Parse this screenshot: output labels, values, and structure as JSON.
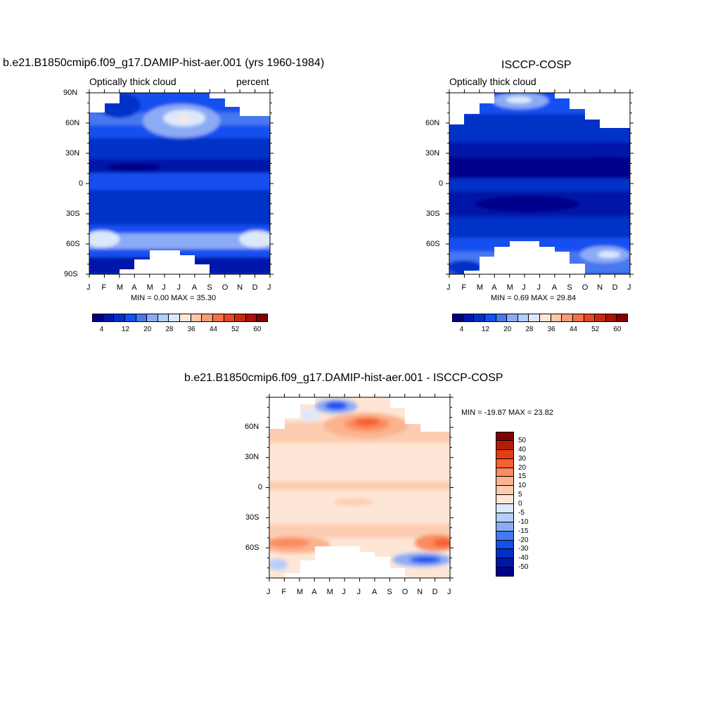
{
  "panels": [
    {
      "title": "b.e21.B1850cmip6.f09_g17.DAMIP-hist-aer.001 (yrs 1960-1984)",
      "left_label": "Optically thick cloud",
      "right_label": "percent",
      "min_max": "MIN =   0.00 MAX =  35.30",
      "y_ticks": [
        "90N",
        "60N",
        "30N",
        "0",
        "30S",
        "60S",
        "90S"
      ]
    },
    {
      "title": "ISCCP-COSP",
      "left_label": "Optically thick cloud",
      "right_label": "",
      "min_max": "MIN =   0.69 MAX =  29.84",
      "y_ticks": [
        "60N",
        "30N",
        "0",
        "30S",
        "60S"
      ]
    },
    {
      "title": "b.e21.B1850cmip6.f09_g17.DAMIP-hist-aer.001 - ISCCP-COSP",
      "left_label": "",
      "right_label": "",
      "min_max": "MIN = -19.87 MAX =  23.82",
      "y_ticks": [
        "60N",
        "30N",
        "0",
        "30S",
        "60S"
      ]
    }
  ],
  "months": [
    "J",
    "F",
    "M",
    "A",
    "M",
    "J",
    "J",
    "A",
    "S",
    "O",
    "N",
    "D",
    "J"
  ],
  "colorbar_abs": {
    "labels": [
      "4",
      "12",
      "20",
      "28",
      "36",
      "44",
      "52",
      "60"
    ],
    "colors": [
      "#00008a",
      "#0018a8",
      "#0030c8",
      "#1450f0",
      "#4678f0",
      "#8cabf5",
      "#b4cdfa",
      "#dce8fc",
      "#fde7d8",
      "#fcc6a9",
      "#f99c76",
      "#f47048",
      "#ea4420",
      "#c82810",
      "#a61408",
      "#840000"
    ]
  },
  "colorbar_diff": {
    "labels": [
      "50",
      "40",
      "30",
      "20",
      "15",
      "10",
      "5",
      "0",
      "-5",
      "-10",
      "-15",
      "-20",
      "-30",
      "-40",
      "-50"
    ],
    "colors": [
      "#840000",
      "#b41c08",
      "#e63c14",
      "#f8602e",
      "#f98c60",
      "#fbb28e",
      "#fcccb0",
      "#fee6d6",
      "#dce8fc",
      "#b4cdfa",
      "#8cabf5",
      "#4678f0",
      "#1450f0",
      "#0030c8",
      "#0018a8",
      "#00008a"
    ]
  },
  "chart_data": [
    {
      "type": "heatmap",
      "title": "b.e21.B1850cmip6.f09_g17.DAMIP-hist-aer.001 (yrs 1960-1984)",
      "variable": "Optically thick cloud",
      "units": "percent",
      "x": "month (Jan-Jan)",
      "y": "latitude (90S-90N)",
      "min": 0.0,
      "max": 35.3,
      "levels": [
        4,
        8,
        12,
        16,
        20,
        24,
        28,
        32,
        36,
        40,
        44,
        48,
        52,
        56,
        60
      ],
      "bands_zonal_mean_percent": [
        {
          "lat": 80,
          "value": 10
        },
        {
          "lat": 65,
          "value": 22
        },
        {
          "lat": 50,
          "value": 15
        },
        {
          "lat": 30,
          "value": 8
        },
        {
          "lat": 10,
          "value": 5
        },
        {
          "lat": 0,
          "value": 9
        },
        {
          "lat": -20,
          "value": 6
        },
        {
          "lat": -45,
          "value": 10
        },
        {
          "lat": -55,
          "value": 24
        },
        {
          "lat": -65,
          "value": 12
        },
        {
          "lat": -80,
          "value": 4
        }
      ]
    },
    {
      "type": "heatmap",
      "title": "ISCCP-COSP",
      "variable": "Optically thick cloud",
      "min": 0.69,
      "max": 29.84,
      "levels": [
        4,
        8,
        12,
        16,
        20,
        24,
        28,
        32,
        36,
        40,
        44,
        48,
        52,
        56,
        60
      ],
      "bands_zonal_mean_percent": [
        {
          "lat": 80,
          "value": 14
        },
        {
          "lat": 60,
          "value": 8
        },
        {
          "lat": 30,
          "value": 6
        },
        {
          "lat": 10,
          "value": 3
        },
        {
          "lat": 0,
          "value": 6
        },
        {
          "lat": -20,
          "value": 3
        },
        {
          "lat": -45,
          "value": 7
        },
        {
          "lat": -60,
          "value": 12
        },
        {
          "lat": -70,
          "value": 18
        }
      ]
    },
    {
      "type": "heatmap",
      "title": "b.e21.B1850cmip6.f09_g17.DAMIP-hist-aer.001 - ISCCP-COSP",
      "min": -19.87,
      "max": 23.82,
      "levels": [
        -50,
        -40,
        -30,
        -20,
        -15,
        -10,
        -5,
        0,
        5,
        10,
        15,
        20,
        30,
        40,
        50
      ],
      "bands_zonal_mean_percent": [
        {
          "lat": 80,
          "value": -10
        },
        {
          "lat": 65,
          "value": 15
        },
        {
          "lat": 45,
          "value": 6
        },
        {
          "lat": 20,
          "value": 3
        },
        {
          "lat": 0,
          "value": 4
        },
        {
          "lat": -40,
          "value": 4
        },
        {
          "lat": -55,
          "value": 15
        },
        {
          "lat": -70,
          "value": -15
        }
      ]
    }
  ]
}
